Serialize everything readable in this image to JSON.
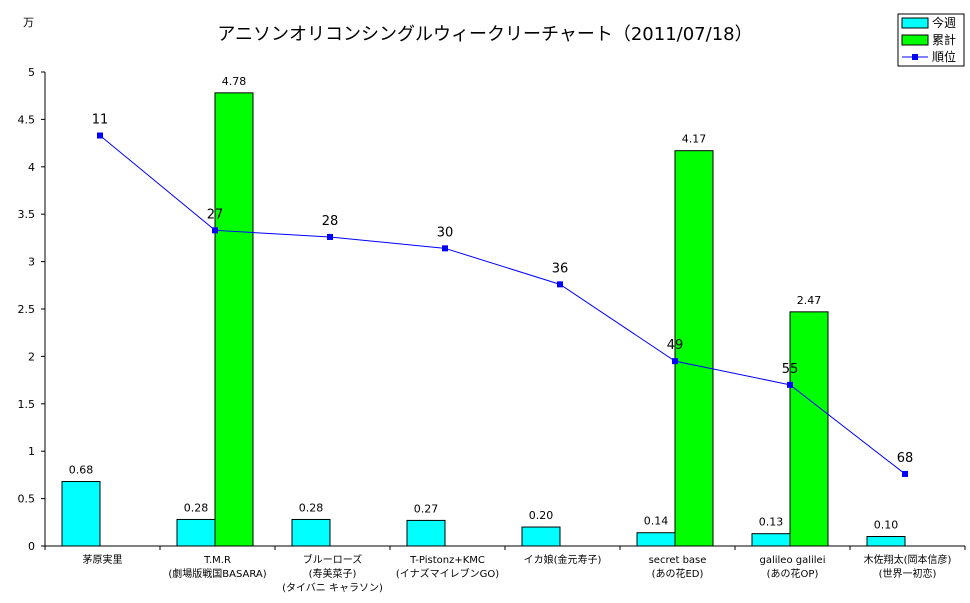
{
  "chart_data": {
    "type": "bar",
    "title": "アニソンオリコンシングルウィークリーチャート（2011/07/18）",
    "unit_label": "万",
    "ylim": [
      0,
      5
    ],
    "yticks": [
      "0",
      "0.5",
      "1",
      "1.5",
      "2",
      "2.5",
      "3",
      "3.5",
      "4",
      "4.5",
      "5"
    ],
    "legend_position": "top-right",
    "grid": false,
    "categories": [
      [
        "茅原実里"
      ],
      [
        "T.M.R",
        "(劇場版戦国BASARA)"
      ],
      [
        "ブルーローズ",
        "(寿美菜子)",
        "(タイバニ キャラソン)"
      ],
      [
        "T-Pistonz+KMC",
        "(イナズマイレブンGO)"
      ],
      [
        "イカ娘(金元寿子)"
      ],
      [
        "secret base",
        "(あの花ED)"
      ],
      [
        "galileo galilei",
        "(あの花OP)"
      ],
      [
        "木佐翔太(岡本信彦)",
        "(世界一初恋)"
      ]
    ],
    "series": [
      {
        "name": "今週",
        "kind": "bar",
        "color": "#00ffff",
        "values": [
          0.68,
          0.28,
          0.28,
          0.27,
          0.2,
          0.14,
          0.13,
          0.1
        ],
        "labels": [
          "0.68",
          "0.28",
          "0.28",
          "0.27",
          "0.20",
          "0.14",
          "0.13",
          "0.10"
        ]
      },
      {
        "name": "累計",
        "kind": "bar",
        "color": "#00ff00",
        "values": [
          null,
          4.78,
          null,
          null,
          null,
          4.17,
          2.47,
          null
        ],
        "labels": [
          "",
          "4.78",
          "",
          "",
          "",
          "4.17",
          "2.47",
          ""
        ]
      },
      {
        "name": "順位",
        "kind": "line",
        "color": "#0000ff",
        "values": [
          11,
          27,
          28,
          30,
          36,
          49,
          55,
          68
        ],
        "plot_values": [
          4.33,
          3.33,
          3.26,
          3.14,
          2.76,
          1.95,
          1.7,
          0.76
        ],
        "labels": [
          "11",
          "27",
          "28",
          "30",
          "36",
          "49",
          "55",
          "68"
        ]
      }
    ]
  }
}
